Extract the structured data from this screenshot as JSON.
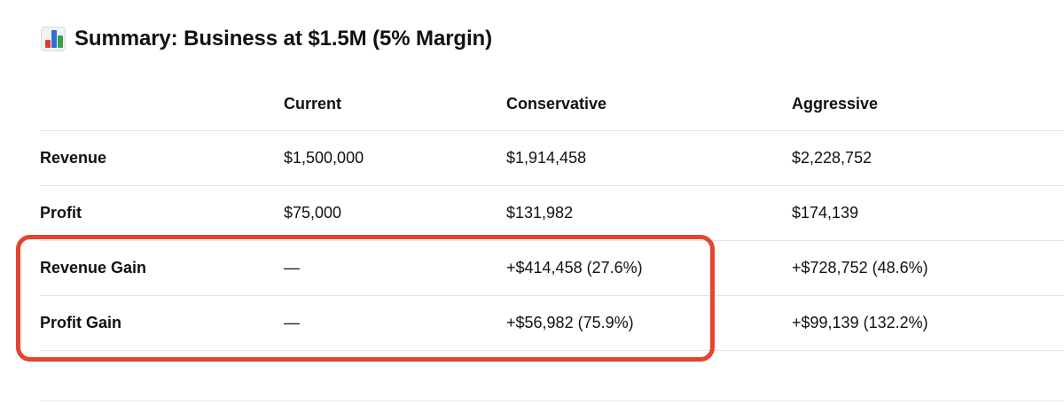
{
  "header": {
    "icon": "bar-chart-icon",
    "title": "Summary: Business at $1.5M (5% Margin)"
  },
  "table": {
    "columns": [
      "",
      "Current",
      "Conservative",
      "Aggressive"
    ],
    "rows": [
      {
        "label": "Revenue",
        "current": "$1,500,000",
        "conservative": "$1,914,458",
        "aggressive": "$2,228,752"
      },
      {
        "label": "Profit",
        "current": "$75,000",
        "conservative": "$131,982",
        "aggressive": "$174,139"
      },
      {
        "label": "Revenue Gain",
        "current": "—",
        "conservative": "+$414,458 (27.6%)",
        "aggressive": "+$728,752 (48.6%)"
      },
      {
        "label": "Profit Gain",
        "current": "—",
        "conservative": "+$56,982 (75.9%)",
        "aggressive": "+$99,139 (132.2%)"
      }
    ]
  },
  "annotation": {
    "highlighted_rows": [
      "Revenue Gain",
      "Profit Gain"
    ],
    "highlight_color": "#e5442e"
  }
}
